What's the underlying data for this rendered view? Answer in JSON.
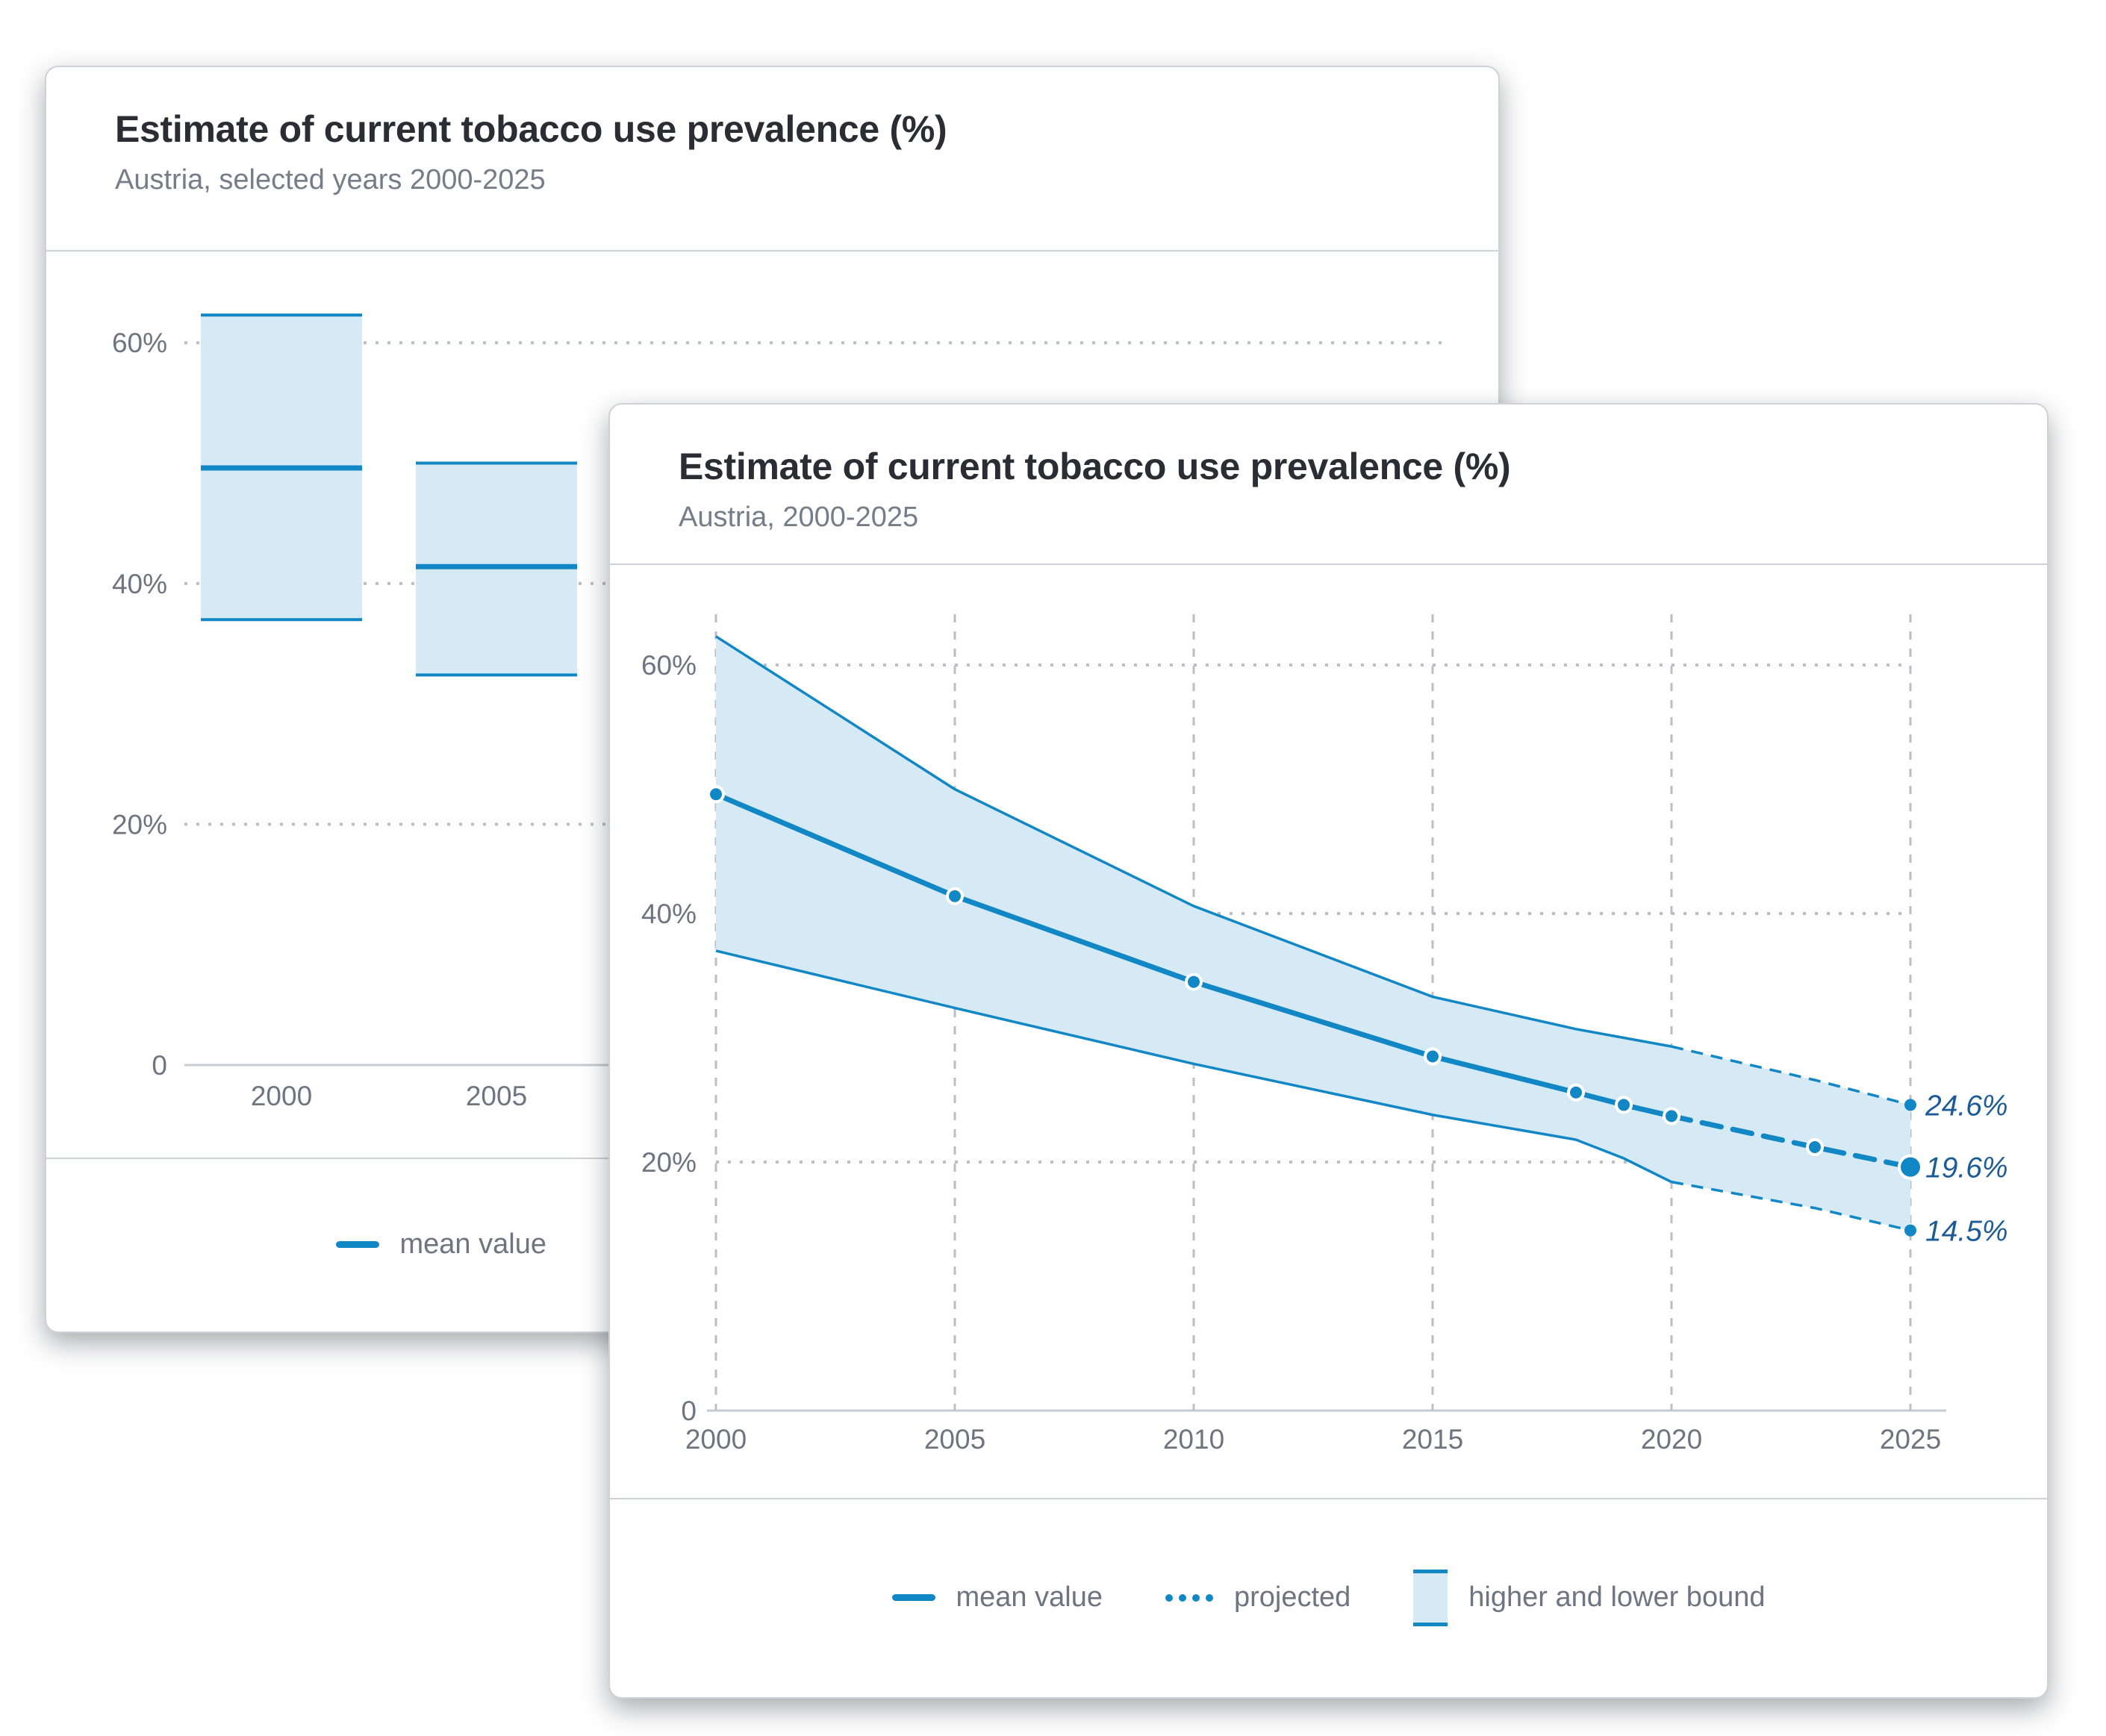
{
  "colors": {
    "accent_blue": "#1287c5",
    "band_fill": "#d6eaf6",
    "grid": "#b9bfc9",
    "axis_line": "#c6ccd4",
    "axis_text": "#6e7580",
    "title_text": "#2a2d33",
    "subtitle_text": "#757d89",
    "annotation_text": "#1d5b97",
    "card_border": "#cdd2da",
    "card_bg": "#ffffff"
  },
  "back_card": {
    "title": "Estimate of current tobacco use prevalence (%)",
    "subtitle": "Austria, selected years 2000-2025",
    "legend": {
      "mean": "mean value",
      "projected": "projected",
      "bound": "higher and lower bound"
    }
  },
  "front_card": {
    "title": "Estimate of current tobacco use prevalence (%)",
    "subtitle": "Austria, 2000-2025",
    "legend": {
      "mean": "mean value",
      "projected": "projected",
      "bound": "higher and lower bound"
    }
  },
  "chart_data": [
    {
      "id": "back-range-bar",
      "type": "bar",
      "title": "Estimate of current tobacco use prevalence (%)",
      "subtitle": "Austria, selected years 2000-2025",
      "categories": [
        "2000",
        "2005"
      ],
      "series": [
        {
          "name": "mean value",
          "values": [
            49.6,
            41.4
          ]
        },
        {
          "name": "higher bound",
          "values": [
            62.3,
            50.0
          ]
        },
        {
          "name": "lower bound",
          "values": [
            37.0,
            32.4
          ]
        }
      ],
      "ylim": [
        0,
        65
      ],
      "y_ticks": [
        {
          "value": 60,
          "label": "60%"
        },
        {
          "value": 40,
          "label": "40%"
        },
        {
          "value": 20,
          "label": "20%"
        },
        {
          "value": 0,
          "label": "0"
        }
      ],
      "grid": "horizontal dotted",
      "legend_position": "bottom"
    },
    {
      "id": "front-band-line",
      "type": "line",
      "title": "Estimate of current tobacco use prevalence (%)",
      "subtitle": "Austria, 2000-2025",
      "x": [
        2000,
        2005,
        2010,
        2015,
        2018,
        2019,
        2020,
        2023,
        2025
      ],
      "series": [
        {
          "name": "mean value",
          "values": [
            49.6,
            41.4,
            34.5,
            28.5,
            25.6,
            24.6,
            23.7,
            21.2,
            19.6
          ]
        },
        {
          "name": "higher bound",
          "values": [
            62.3,
            50.0,
            40.6,
            33.3,
            30.7,
            30.0,
            29.3,
            26.6,
            24.6
          ]
        },
        {
          "name": "lower bound",
          "values": [
            37.0,
            32.4,
            27.9,
            23.8,
            21.8,
            20.3,
            18.4,
            16.3,
            14.5
          ]
        }
      ],
      "projection_from": 2020,
      "marker_years": [
        2000,
        2005,
        2010,
        2015,
        2018,
        2019,
        2020,
        2023
      ],
      "end_marker_year": 2025,
      "xlim": [
        2000,
        2025
      ],
      "ylim": [
        0,
        65
      ],
      "x_ticks": [
        {
          "value": 2000,
          "label": "2000"
        },
        {
          "value": 2005,
          "label": "2005"
        },
        {
          "value": 2010,
          "label": "2010"
        },
        {
          "value": 2015,
          "label": "2015"
        },
        {
          "value": 2020,
          "label": "2020"
        },
        {
          "value": 2025,
          "label": "2025"
        }
      ],
      "y_ticks": [
        {
          "value": 60,
          "label": "60%"
        },
        {
          "value": 40,
          "label": "40%"
        },
        {
          "value": 20,
          "label": "20%"
        },
        {
          "value": 0,
          "label": "0"
        }
      ],
      "end_labels": [
        {
          "text": "24.6%",
          "value": 24.6
        },
        {
          "text": "19.6%",
          "value": 19.6
        },
        {
          "text": "14.5%",
          "value": 14.5
        }
      ],
      "grid": "horizontal dotted, vertical dashed",
      "legend_position": "bottom"
    }
  ]
}
